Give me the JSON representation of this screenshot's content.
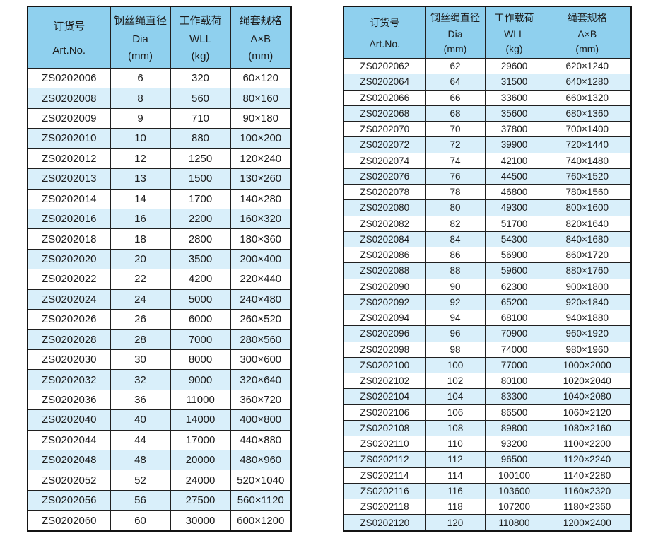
{
  "header": {
    "art_no_zh": "订货号",
    "art_no_en": "Art.No.",
    "dia_zh": "钢丝绳直径",
    "dia_en": "Dia",
    "dia_unit": "(mm)",
    "wll_zh": "工作载荷",
    "wll_en": "WLL",
    "wll_unit": "(kg)",
    "spec_zh": "绳套规格",
    "spec_en": "A×B",
    "spec_unit": "(mm)"
  },
  "colors": {
    "header_bg": "#8fd0ee",
    "stripe_bg": "#d9effa",
    "border": "#202020",
    "text": "#1c1c1c"
  },
  "tables": [
    {
      "id": "left",
      "rows": [
        [
          "ZS0202006",
          "6",
          "320",
          "60×120"
        ],
        [
          "ZS0202008",
          "8",
          "560",
          "80×160"
        ],
        [
          "ZS0202009",
          "9",
          "710",
          "90×180"
        ],
        [
          "ZS0202010",
          "10",
          "880",
          "100×200"
        ],
        [
          "ZS0202012",
          "12",
          "1250",
          "120×240"
        ],
        [
          "ZS0202013",
          "13",
          "1500",
          "130×260"
        ],
        [
          "ZS0202014",
          "14",
          "1700",
          "140×280"
        ],
        [
          "ZS0202016",
          "16",
          "2200",
          "160×320"
        ],
        [
          "ZS0202018",
          "18",
          "2800",
          "180×360"
        ],
        [
          "ZS0202020",
          "20",
          "3500",
          "200×400"
        ],
        [
          "ZS0202022",
          "22",
          "4200",
          "220×440"
        ],
        [
          "ZS0202024",
          "24",
          "5000",
          "240×480"
        ],
        [
          "ZS0202026",
          "26",
          "6000",
          "260×520"
        ],
        [
          "ZS0202028",
          "28",
          "7000",
          "280×560"
        ],
        [
          "ZS0202030",
          "30",
          "8000",
          "300×600"
        ],
        [
          "ZS0202032",
          "32",
          "9000",
          "320×640"
        ],
        [
          "ZS0202036",
          "36",
          "11000",
          "360×720"
        ],
        [
          "ZS0202040",
          "40",
          "14000",
          "400×800"
        ],
        [
          "ZS0202044",
          "44",
          "17000",
          "440×880"
        ],
        [
          "ZS0202048",
          "48",
          "20000",
          "480×960"
        ],
        [
          "ZS0202052",
          "52",
          "24000",
          "520×1040"
        ],
        [
          "ZS0202056",
          "56",
          "27500",
          "560×1120"
        ],
        [
          "ZS0202060",
          "60",
          "30000",
          "600×1200"
        ]
      ]
    },
    {
      "id": "right",
      "rows": [
        [
          "ZS0202062",
          "62",
          "29600",
          "620×1240"
        ],
        [
          "ZS0202064",
          "64",
          "31500",
          "640×1280"
        ],
        [
          "ZS0202066",
          "66",
          "33600",
          "660×1320"
        ],
        [
          "ZS0202068",
          "68",
          "35600",
          "680×1360"
        ],
        [
          "ZS0202070",
          "70",
          "37800",
          "700×1400"
        ],
        [
          "ZS0202072",
          "72",
          "39900",
          "720×1440"
        ],
        [
          "ZS0202074",
          "74",
          "42100",
          "740×1480"
        ],
        [
          "ZS0202076",
          "76",
          "44500",
          "760×1520"
        ],
        [
          "ZS0202078",
          "78",
          "46800",
          "780×1560"
        ],
        [
          "ZS0202080",
          "80",
          "49300",
          "800×1600"
        ],
        [
          "ZS0202082",
          "82",
          "51700",
          "820×1640"
        ],
        [
          "ZS0202084",
          "84",
          "54300",
          "840×1680"
        ],
        [
          "ZS0202086",
          "86",
          "56900",
          "860×1720"
        ],
        [
          "ZS0202088",
          "88",
          "59600",
          "880×1760"
        ],
        [
          "ZS0202090",
          "90",
          "62300",
          "900×1800"
        ],
        [
          "ZS0202092",
          "92",
          "65200",
          "920×1840"
        ],
        [
          "ZS0202094",
          "94",
          "68100",
          "940×1880"
        ],
        [
          "ZS0202096",
          "96",
          "70900",
          "960×1920"
        ],
        [
          "ZS0202098",
          "98",
          "74000",
          "980×1960"
        ],
        [
          "ZS0202100",
          "100",
          "77000",
          "1000×2000"
        ],
        [
          "ZS0202102",
          "102",
          "80100",
          "1020×2040"
        ],
        [
          "ZS0202104",
          "104",
          "83300",
          "1040×2080"
        ],
        [
          "ZS0202106",
          "106",
          "86500",
          "1060×2120"
        ],
        [
          "ZS0202108",
          "108",
          "89800",
          "1080×2160"
        ],
        [
          "ZS0202110",
          "110",
          "93200",
          "1100×2200"
        ],
        [
          "ZS0202112",
          "112",
          "96500",
          "1120×2240"
        ],
        [
          "ZS0202114",
          "114",
          "100100",
          "1140×2280"
        ],
        [
          "ZS0202116",
          "116",
          "103600",
          "1160×2320"
        ],
        [
          "ZS0202118",
          "118",
          "107200",
          "1180×2360"
        ],
        [
          "ZS0202120",
          "120",
          "110800",
          "1200×2400"
        ]
      ]
    }
  ]
}
